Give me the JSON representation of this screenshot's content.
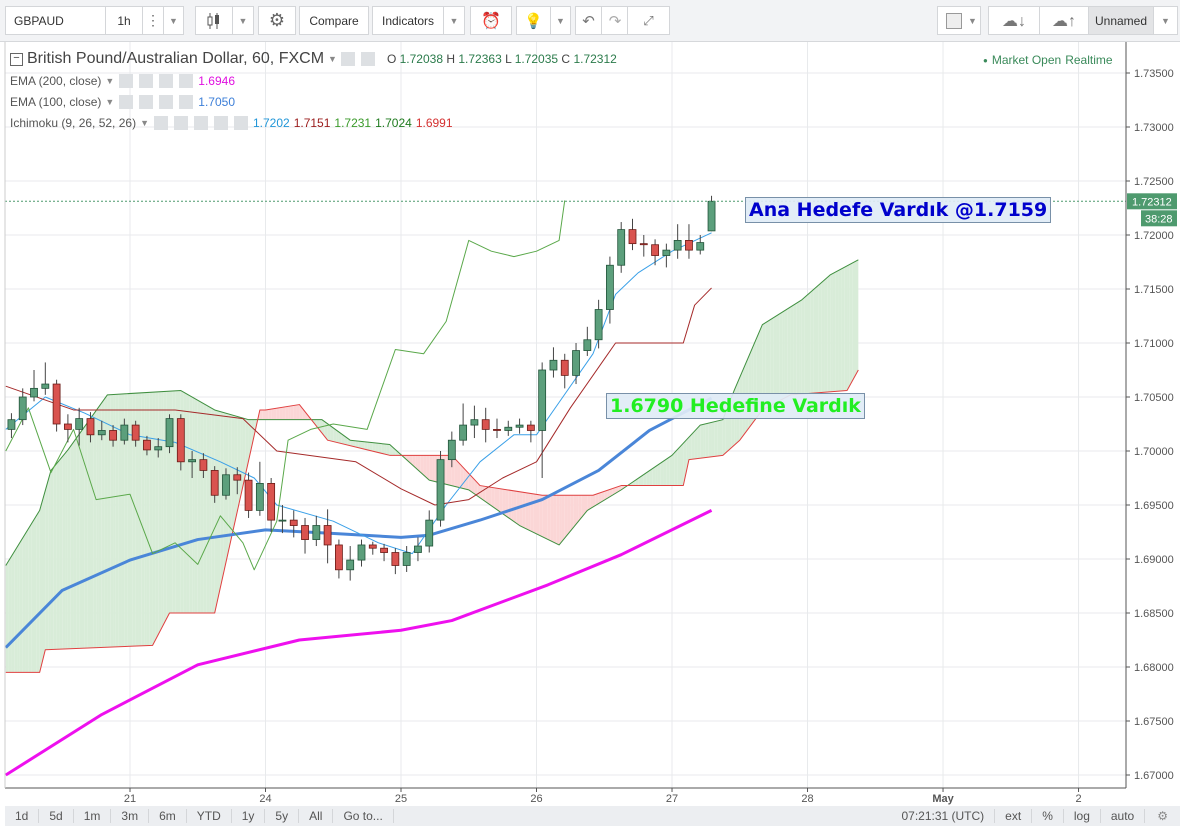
{
  "toolbar": {
    "symbol": "GBPAUD",
    "interval": "1h",
    "compare_label": "Compare",
    "indicators_label": "Indicators",
    "layout_name": "Unnamed"
  },
  "legend": {
    "title": "British Pound/Australian Dollar, 60, FXCM",
    "ohlc": {
      "o_label": "O",
      "o": "1.72038",
      "h_label": "H",
      "h": "1.72363",
      "l_label": "L",
      "l": "1.72035",
      "c_label": "C",
      "c": "1.72312"
    },
    "market_status": "Market Open",
    "realtime": "Realtime",
    "indicators": [
      {
        "label": "EMA (200, close)",
        "values": [
          {
            "v": "1.6946",
            "color": "#e010e0"
          }
        ]
      },
      {
        "label": "EMA (100, close)",
        "values": [
          {
            "v": "1.7050",
            "color": "#3d7fd8"
          }
        ]
      },
      {
        "label": "Ichimoku (9, 26, 52, 26)",
        "values": [
          {
            "v": "1.7202",
            "color": "#2196d8"
          },
          {
            "v": "1.7151",
            "color": "#9a1b1b"
          },
          {
            "v": "1.7231",
            "color": "#3a9a2a"
          },
          {
            "v": "1.7024",
            "color": "#1e7a1e"
          },
          {
            "v": "1.6991",
            "color": "#d43030"
          }
        ]
      }
    ]
  },
  "annotations": [
    {
      "text": "Ana Hedefe Vardık @1.7159",
      "color": "#0000cc"
    },
    {
      "text": "1.6790 Hedefine Vardık",
      "color": "#22ee22"
    }
  ],
  "price_axis": {
    "range": [
      1.668,
      1.7375
    ],
    "ticks": [
      "1.73500",
      "1.73000",
      "1.72500",
      "1.72000",
      "1.71500",
      "1.71000",
      "1.70500",
      "1.70000",
      "1.69500",
      "1.69000",
      "1.68500",
      "1.68000",
      "1.67500",
      "1.67000"
    ],
    "last_price": "1.72312",
    "countdown": "38:28"
  },
  "time_axis": {
    "ticks": [
      "21",
      "24",
      "25",
      "26",
      "27",
      "28",
      "May",
      "2"
    ]
  },
  "bottom_bar": {
    "ranges": [
      "1d",
      "5d",
      "1m",
      "3m",
      "6m",
      "YTD",
      "1y",
      "5y",
      "All"
    ],
    "goto": "Go to...",
    "clock": "07:21:31 (UTC)",
    "toggles": [
      "ext",
      "%",
      "log",
      "auto"
    ]
  },
  "colors": {
    "up": "#5c9f7c",
    "down": "#d9534f",
    "ema200": "#ee10ee",
    "ema100": "#4a86d8",
    "tenkan": "#3aa0e8",
    "kijun": "#a52a2a",
    "chikou": "#5aa84a",
    "span_a": "#3f8f3f",
    "span_b": "#e04040",
    "cloud_up": "#d8ecd8",
    "cloud_down": "#fbd6d6",
    "last": "#4e9a6e"
  },
  "chart_data": {
    "type": "candlestick",
    "timeframe": "60",
    "candles": [
      [
        "Apr 20 03:00",
        1.702,
        1.7035,
        1.7012,
        1.7029
      ],
      [
        "Apr 20 05:00",
        1.7029,
        1.7058,
        1.7024,
        1.705
      ],
      [
        "Apr 20 07:00",
        1.705,
        1.7075,
        1.7046,
        1.7058
      ],
      [
        "Apr 20 09:00",
        1.7058,
        1.7082,
        1.7052,
        1.7062
      ],
      [
        "Apr 20 11:00",
        1.7062,
        1.7066,
        1.7018,
        1.7025
      ],
      [
        "Apr 20 13:00",
        1.7025,
        1.7034,
        1.7008,
        1.702
      ],
      [
        "Apr 20 15:00",
        1.702,
        1.704,
        1.7005,
        1.703
      ],
      [
        "Apr 20 17:00",
        1.703,
        1.7036,
        1.7008,
        1.7015
      ],
      [
        "Apr 20 19:00",
        1.7015,
        1.7028,
        1.701,
        1.7019
      ],
      [
        "Apr 20 21:00",
        1.7019,
        1.7024,
        1.7004,
        1.701
      ],
      [
        "Apr 20 23:00",
        1.701,
        1.703,
        1.7006,
        1.7024
      ],
      [
        "Apr 21 01:00",
        1.7024,
        1.7028,
        1.7004,
        1.701
      ],
      [
        "Apr 21 03:00",
        1.701,
        1.7014,
        1.6996,
        1.7001
      ],
      [
        "Apr 21 05:00",
        1.7001,
        1.7012,
        1.6994,
        1.7004
      ],
      [
        "Apr 21 07:00",
        1.7004,
        1.7034,
        1.6998,
        1.703
      ],
      [
        "Apr 21 09:00",
        1.703,
        1.7034,
        1.6982,
        1.699
      ],
      [
        "Apr 21 11:00",
        1.699,
        1.7,
        1.6975,
        1.6992
      ],
      [
        "Apr 21 13:00",
        1.6992,
        1.6998,
        1.6975,
        1.6982
      ],
      [
        "Apr 21 15:00",
        1.6982,
        1.6986,
        1.6952,
        1.6959
      ],
      [
        "Apr 21 17:00",
        1.6959,
        1.6984,
        1.6955,
        1.6978
      ],
      [
        "Apr 21 19:00",
        1.6978,
        1.6985,
        1.696,
        1.6973
      ],
      [
        "Apr 21 21:00",
        1.6973,
        1.698,
        1.6938,
        1.6945
      ],
      [
        "Apr 21 23:00",
        1.6945,
        1.699,
        1.694,
        1.697
      ],
      [
        "Apr 24 01:00",
        1.697,
        1.6975,
        1.6925,
        1.6936
      ],
      [
        "Apr 24 03:00",
        1.6936,
        1.695,
        1.6924,
        1.6936
      ],
      [
        "Apr 24 05:00",
        1.6936,
        1.6945,
        1.692,
        1.6931
      ],
      [
        "Apr 24 07:00",
        1.6931,
        1.6938,
        1.6905,
        1.6918
      ],
      [
        "Apr 24 09:00",
        1.6918,
        1.694,
        1.6912,
        1.6931
      ],
      [
        "Apr 24 11:00",
        1.6931,
        1.6946,
        1.6896,
        1.6913
      ],
      [
        "Apr 24 13:00",
        1.6913,
        1.6918,
        1.6882,
        1.689
      ],
      [
        "Apr 24 15:00",
        1.689,
        1.6912,
        1.688,
        1.6899
      ],
      [
        "Apr 24 17:00",
        1.6899,
        1.6918,
        1.6893,
        1.6913
      ],
      [
        "Apr 24 19:00",
        1.6913,
        1.6916,
        1.6904,
        1.691
      ],
      [
        "Apr 24 21:00",
        1.691,
        1.6914,
        1.6898,
        1.6906
      ],
      [
        "Apr 24 23:00",
        1.6906,
        1.691,
        1.6886,
        1.6894
      ],
      [
        "Apr 25 01:00",
        1.6894,
        1.6912,
        1.6888,
        1.6906
      ],
      [
        "Apr 25 03:00",
        1.6906,
        1.692,
        1.6898,
        1.6912
      ],
      [
        "Apr 25 05:00",
        1.6912,
        1.6945,
        1.6906,
        1.6936
      ],
      [
        "Apr 25 07:00",
        1.6936,
        1.7,
        1.693,
        1.6992
      ],
      [
        "Apr 25 09:00",
        1.6992,
        1.7018,
        1.6985,
        1.701
      ],
      [
        "Apr 25 11:00",
        1.701,
        1.7044,
        1.7005,
        1.7024
      ],
      [
        "Apr 25 13:00",
        1.7024,
        1.7042,
        1.7012,
        1.7029
      ],
      [
        "Apr 25 15:00",
        1.7029,
        1.704,
        1.7008,
        1.702
      ],
      [
        "Apr 25 17:00",
        1.702,
        1.703,
        1.7012,
        1.7019
      ],
      [
        "Apr 25 19:00",
        1.7019,
        1.7028,
        1.7014,
        1.7022
      ],
      [
        "Apr 25 21:00",
        1.7022,
        1.703,
        1.7016,
        1.7024
      ],
      [
        "Apr 25 23:00",
        1.7024,
        1.7028,
        1.7008,
        1.7019
      ],
      [
        "Apr 26 01:00",
        1.7019,
        1.7082,
        1.6975,
        1.7075
      ],
      [
        "Apr 26 03:00",
        1.7075,
        1.7096,
        1.7068,
        1.7084
      ],
      [
        "Apr 26 05:00",
        1.7084,
        1.709,
        1.7058,
        1.707
      ],
      [
        "Apr 26 07:00",
        1.707,
        1.71,
        1.7062,
        1.7093
      ],
      [
        "Apr 26 09:00",
        1.7093,
        1.7115,
        1.7088,
        1.7103
      ],
      [
        "Apr 26 11:00",
        1.7103,
        1.714,
        1.7095,
        1.7131
      ],
      [
        "Apr 26 13:00",
        1.7131,
        1.718,
        1.7118,
        1.7172
      ],
      [
        "Apr 26 15:00",
        1.7172,
        1.7212,
        1.7165,
        1.7205
      ],
      [
        "Apr 26 17:00",
        1.7205,
        1.7215,
        1.7186,
        1.7192
      ],
      [
        "Apr 26 19:00",
        1.7192,
        1.72,
        1.718,
        1.7191
      ],
      [
        "Apr 26 21:00",
        1.7191,
        1.7196,
        1.7172,
        1.7181
      ],
      [
        "Apr 26 23:00",
        1.7181,
        1.7192,
        1.717,
        1.7186
      ],
      [
        "Apr 27 01:00",
        1.7186,
        1.721,
        1.7178,
        1.7195
      ],
      [
        "Apr 27 03:00",
        1.7195,
        1.721,
        1.7178,
        1.7186
      ],
      [
        "Apr 27 05:00",
        1.7186,
        1.72,
        1.7182,
        1.7193
      ],
      [
        "Apr 27 07:00",
        1.72038,
        1.72363,
        1.72035,
        1.72312
      ]
    ],
    "lines": [
      {
        "name": "EMA (200, close)",
        "key": "ema200",
        "width": 3,
        "points": [
          [
            "Apr 20 02:00",
            1.67
          ],
          [
            "Apr 20 19:00",
            1.6756
          ],
          [
            "Apr 21 12:00",
            1.6802
          ],
          [
            "Apr 24 06:00",
            1.6825
          ],
          [
            "Apr 25 00:00",
            1.6834
          ],
          [
            "Apr 25 09:00",
            1.6843
          ],
          [
            "Apr 26 02:00",
            1.6876
          ],
          [
            "Apr 26 15:00",
            1.6904
          ],
          [
            "Apr 27 07:00",
            1.6945
          ]
        ]
      },
      {
        "name": "EMA (100, close)",
        "key": "ema100",
        "width": 3,
        "points": [
          [
            "Apr 20 02:00",
            1.6818
          ],
          [
            "Apr 20 12:00",
            1.6871
          ],
          [
            "Apr 21 00:00",
            1.6899
          ],
          [
            "Apr 21 12:00",
            1.6918
          ],
          [
            "Apr 24 00:00",
            1.6927
          ],
          [
            "Apr 24 11:00",
            1.6924
          ],
          [
            "Apr 25 00:00",
            1.692
          ],
          [
            "Apr 25 05:00",
            1.6922
          ],
          [
            "Apr 25 14:00",
            1.6936
          ],
          [
            "Apr 26 01:00",
            1.6955
          ],
          [
            "Apr 26 11:00",
            1.6982
          ],
          [
            "Apr 26 20:00",
            1.7019
          ],
          [
            "Apr 27 07:00",
            1.7049
          ]
        ]
      },
      {
        "name": "Tenkan",
        "key": "tenkan",
        "width": 1,
        "points": [
          [
            "Apr 20 02:00",
            1.702
          ],
          [
            "Apr 20 09:00",
            1.705
          ],
          [
            "Apr 20 16:00",
            1.7035
          ],
          [
            "Apr 21 00:00",
            1.7015
          ],
          [
            "Apr 21 08:00",
            1.7008
          ],
          [
            "Apr 21 16:00",
            1.699
          ],
          [
            "Apr 21 22:00",
            1.6975
          ],
          [
            "Apr 24 02:00",
            1.695
          ],
          [
            "Apr 24 12:00",
            1.6935
          ],
          [
            "Apr 24 20:00",
            1.6915
          ],
          [
            "Apr 25 02:00",
            1.6905
          ],
          [
            "Apr 25 08:00",
            1.695
          ],
          [
            "Apr 25 14:00",
            1.699
          ],
          [
            "Apr 25 20:00",
            1.7015
          ],
          [
            "Apr 26 00:00",
            1.7015
          ],
          [
            "Apr 26 04:00",
            1.7045
          ],
          [
            "Apr 26 10:00",
            1.709
          ],
          [
            "Apr 26 14:00",
            1.7145
          ],
          [
            "Apr 26 18:00",
            1.7165
          ],
          [
            "Apr 27 00:00",
            1.7185
          ],
          [
            "Apr 27 07:00",
            1.7202
          ]
        ]
      },
      {
        "name": "Kijun",
        "key": "kijun",
        "width": 1,
        "points": [
          [
            "Apr 20 02:00",
            1.706
          ],
          [
            "Apr 20 14:00",
            1.7038
          ],
          [
            "Apr 21 08:00",
            1.7038
          ],
          [
            "Apr 21 20:00",
            1.703
          ],
          [
            "Apr 24 02:00",
            1.7
          ],
          [
            "Apr 24 16:00",
            1.699
          ],
          [
            "Apr 25 00:00",
            1.6965
          ],
          [
            "Apr 25 06:00",
            1.695
          ],
          [
            "Apr 25 12:00",
            1.6955
          ],
          [
            "Apr 25 18:00",
            1.6975
          ],
          [
            "Apr 26 00:00",
            1.699
          ],
          [
            "Apr 26 06:00",
            1.704
          ],
          [
            "Apr 26 12:00",
            1.7085
          ],
          [
            "Apr 26 14:00",
            1.71
          ],
          [
            "Apr 27 02:00",
            1.71
          ],
          [
            "Apr 27 04:00",
            1.7135
          ],
          [
            "Apr 27 07:00",
            1.7151
          ]
        ]
      },
      {
        "name": "Chikou",
        "key": "chikou",
        "width": 1,
        "points": [
          [
            "Apr 20 02:00",
            1.7
          ],
          [
            "Apr 20 06:00",
            1.704
          ],
          [
            "Apr 20 10:00",
            1.698
          ],
          [
            "Apr 20 14:00",
            1.702
          ],
          [
            "Apr 20 18:00",
            1.6955
          ],
          [
            "Apr 21 00:00",
            1.696
          ],
          [
            "Apr 21 04:00",
            1.6905
          ],
          [
            "Apr 21 08:00",
            1.6915
          ],
          [
            "Apr 21 12:00",
            1.6895
          ],
          [
            "Apr 21 16:00",
            1.694
          ],
          [
            "Apr 21 20:00",
            1.6915
          ],
          [
            "Apr 21 22:00",
            1.689
          ],
          [
            "Apr 24 02:00",
            1.6935
          ],
          [
            "Apr 24 04:00",
            1.701
          ],
          [
            "Apr 24 08:00",
            1.702
          ],
          [
            "Apr 24 12:00",
            1.7025
          ],
          [
            "Apr 24 18:00",
            1.702
          ],
          [
            "Apr 24 23:00",
            1.7094
          ],
          [
            "Apr 25 04:00",
            1.709
          ],
          [
            "Apr 25 08:00",
            1.712
          ],
          [
            "Apr 25 12:00",
            1.7195
          ],
          [
            "Apr 25 16:00",
            1.7185
          ],
          [
            "Apr 25 20:00",
            1.718
          ],
          [
            "Apr 26 00:00",
            1.7185
          ],
          [
            "Apr 26 04:00",
            1.7195
          ],
          [
            "Apr 26 05:00",
            1.7232
          ]
        ]
      }
    ],
    "span_a": [
      [
        "Apr 20 02:00",
        1.6894
      ],
      [
        "Apr 20 08:00",
        1.6945
      ],
      [
        "Apr 20 10:00",
        1.6982
      ],
      [
        "Apr 20 13:00",
        1.7001
      ],
      [
        "Apr 20 20:00",
        1.7052
      ],
      [
        "Apr 21 09:00",
        1.7056
      ],
      [
        "Apr 21 15:00",
        1.7038
      ],
      [
        "Apr 21 21:00",
        1.7029
      ],
      [
        "Apr 24 06:00",
        1.7029
      ],
      [
        "Apr 24 10:00",
        1.7029
      ],
      [
        "Apr 24 15:00",
        1.701
      ],
      [
        "Apr 24 22:00",
        1.7006
      ],
      [
        "Apr 25 05:00",
        1.6973
      ],
      [
        "Apr 25 12:00",
        1.6964
      ],
      [
        "Apr 25 21:00",
        1.6931
      ],
      [
        "Apr 26 04:00",
        1.6913
      ],
      [
        "Apr 26 09:00",
        1.6945
      ],
      [
        "Apr 26 15:00",
        1.6964
      ],
      [
        "Apr 27 00:00",
        1.6996
      ],
      [
        "Apr 27 05:00",
        1.7024
      ],
      [
        "Apr 27 09:00",
        1.7029
      ],
      [
        "Apr 27 11:00",
        1.7056
      ],
      [
        "Apr 27 16:00",
        1.7117
      ],
      [
        "Apr 27 23:00",
        1.714
      ],
      [
        "Apr 28 04:00",
        1.7163
      ],
      [
        "Apr 28 09:00",
        1.7177
      ]
    ],
    "span_b": [
      [
        "Apr 20 02:00",
        1.6795
      ],
      [
        "Apr 20 08:00",
        1.6795
      ],
      [
        "Apr 20 09:00",
        1.6816
      ],
      [
        "Apr 21 04:00",
        1.682
      ],
      [
        "Apr 21 07:00",
        1.685
      ],
      [
        "Apr 21 15:00",
        1.685
      ],
      [
        "Apr 21 23:00",
        1.7038
      ],
      [
        "Apr 24 00:00",
        1.7038
      ],
      [
        "Apr 24 06:00",
        1.7043
      ],
      [
        "Apr 24 11:00",
        1.701
      ],
      [
        "Apr 24 22:00",
        1.6996
      ],
      [
        "Apr 25 09:00",
        1.6996
      ],
      [
        "Apr 25 14:00",
        1.6968
      ],
      [
        "Apr 26 01:00",
        1.6959
      ],
      [
        "Apr 26 10:00",
        1.6959
      ],
      [
        "Apr 26 15:00",
        1.6968
      ],
      [
        "Apr 27 02:00",
        1.6968
      ],
      [
        "Apr 27 03:00",
        1.6992
      ],
      [
        "Apr 27 09:00",
        1.6996
      ],
      [
        "Apr 27 12:00",
        1.701
      ],
      [
        "Apr 27 16:00",
        1.7038
      ],
      [
        "Apr 27 21:00",
        1.7052
      ],
      [
        "Apr 28 07:00",
        1.7056
      ],
      [
        "Apr 28 09:00",
        1.7075
      ]
    ]
  }
}
